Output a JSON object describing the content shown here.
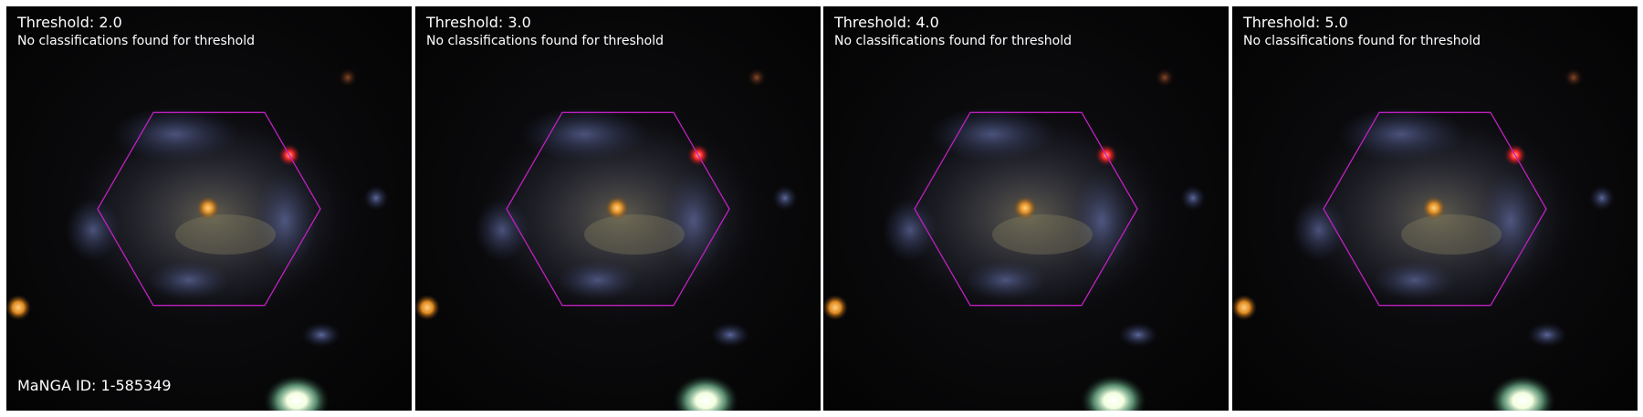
{
  "manga_id_label": "MaNGA ID: 1-585349",
  "hexagon_color": "#c020c0",
  "panels": [
    {
      "title": "Threshold: 2.0",
      "message": "No classifications found for threshold"
    },
    {
      "title": "Threshold: 3.0",
      "message": "No classifications found for threshold"
    },
    {
      "title": "Threshold: 4.0",
      "message": "No classifications found for threshold"
    },
    {
      "title": "Threshold: 5.0",
      "message": "No classifications found for threshold"
    }
  ]
}
